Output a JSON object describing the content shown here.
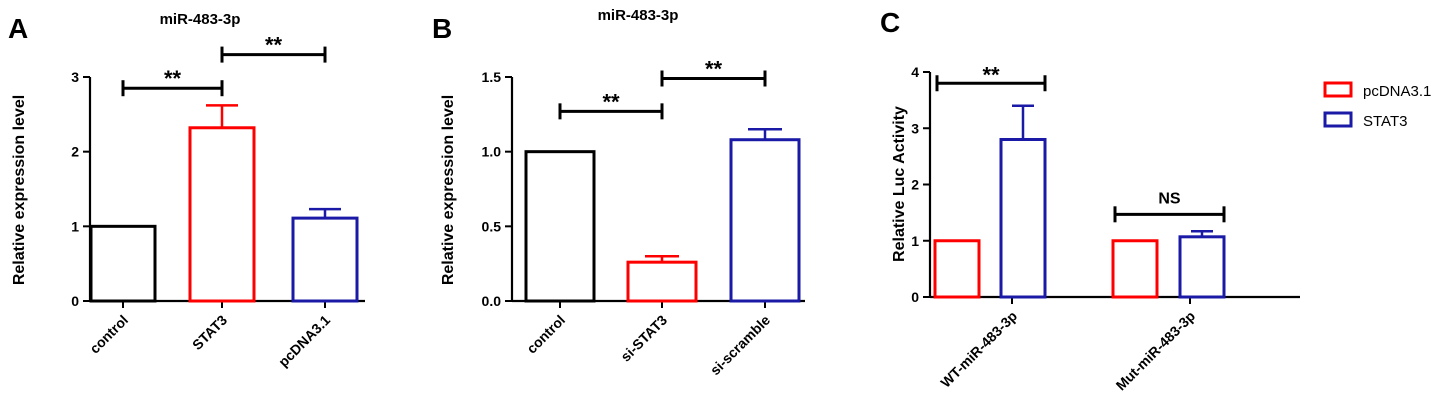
{
  "colors": {
    "control": "#000000",
    "pcDNA3.1": "#ff0000",
    "STAT3": "#1a1aa6",
    "axis": "#000000"
  },
  "chart_data": [
    {
      "panel_label": "A",
      "type": "bar",
      "title": "miR-483-3p",
      "xlabel": "",
      "ylabel": "Relative expression level",
      "ylim": [
        0,
        3
      ],
      "yticks": [
        "0",
        "1",
        "2",
        "3"
      ],
      "categories": [
        "control",
        "STAT3",
        "pcDNA3.1"
      ],
      "values": [
        1.0,
        2.32,
        1.11
      ],
      "errors": [
        0,
        0.3,
        0.12
      ],
      "bar_colors": [
        "#000000",
        "#ff0000",
        "#1a1aa6"
      ],
      "significance": [
        {
          "from": 0,
          "to": 1,
          "y": 2.85,
          "label": "**"
        },
        {
          "from": 1,
          "to": 2,
          "y": 3.3,
          "label": "**"
        }
      ]
    },
    {
      "panel_label": "B",
      "type": "bar",
      "title": "miR-483-3p",
      "xlabel": "",
      "ylabel": "Relative expression level",
      "ylim": [
        0,
        1.5
      ],
      "yticks": [
        "0.0",
        "0.5",
        "1.0",
        "1.5"
      ],
      "categories": [
        "control",
        "si-STAT3",
        "si-scramble"
      ],
      "values": [
        1.0,
        0.26,
        1.08
      ],
      "errors": [
        0,
        0.04,
        0.07
      ],
      "bar_colors": [
        "#000000",
        "#ff0000",
        "#1a1aa6"
      ],
      "significance": [
        {
          "from": 0,
          "to": 1,
          "y": 1.27,
          "label": "**"
        },
        {
          "from": 1,
          "to": 2,
          "y": 1.49,
          "label": "**"
        }
      ]
    },
    {
      "panel_label": "C",
      "type": "bar",
      "title": "",
      "xlabel": "",
      "ylabel": "Relative Luc Activity",
      "ylim": [
        0,
        4
      ],
      "yticks": [
        "0",
        "1",
        "2",
        "3",
        "4"
      ],
      "categories": [
        "WT-miR-483-3p",
        "Mut-miR-483-3p"
      ],
      "series": [
        {
          "name": "pcDNA3.1",
          "values": [
            1.0,
            1.0
          ],
          "errors": [
            0,
            0
          ],
          "color": "#ff0000"
        },
        {
          "name": "STAT3",
          "values": [
            2.8,
            1.07
          ],
          "errors": [
            0.6,
            0.1
          ],
          "color": "#1a1aa6"
        }
      ],
      "legend": "right",
      "significance": [
        {
          "group": 0,
          "y": 3.8,
          "label": "**"
        },
        {
          "group": 1,
          "y": 1.47,
          "label": "NS"
        }
      ]
    }
  ]
}
